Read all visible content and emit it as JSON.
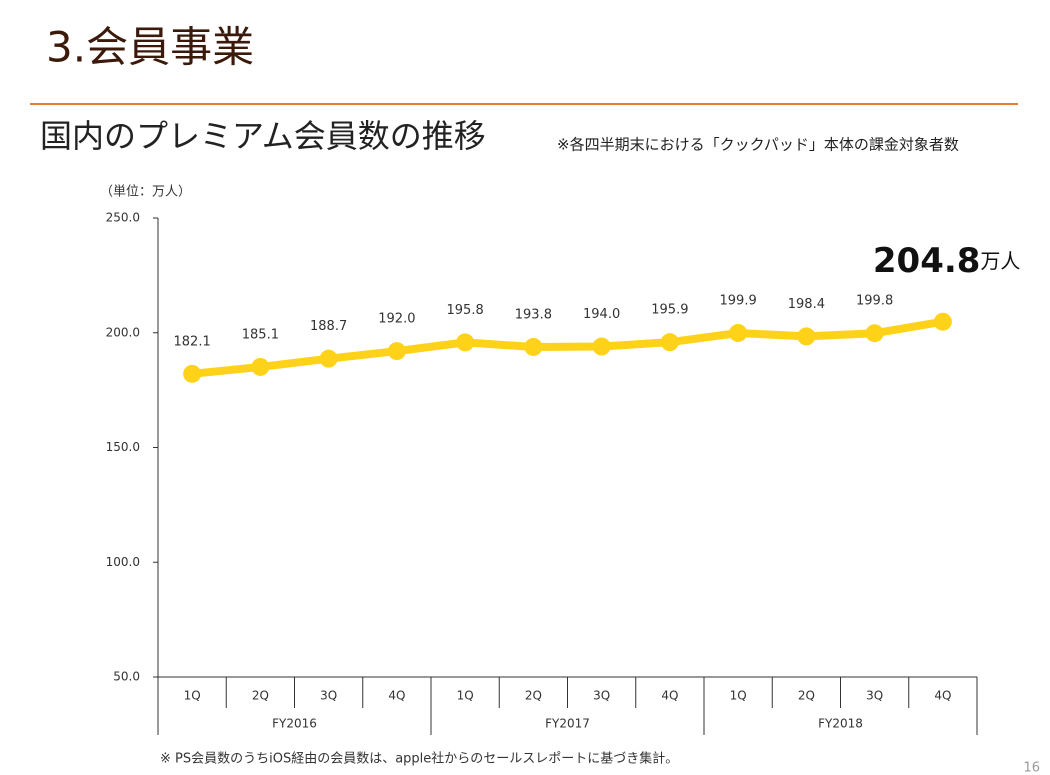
{
  "header": "3.会員事業",
  "chart_data": {
    "type": "line",
    "title": "国内のプレミアム会員数の推移",
    "subtitle": "※各四半期末における「クックパッド」本体の課金対象者数",
    "unit_label": "（単位：万人）",
    "categories": [
      "1Q",
      "2Q",
      "3Q",
      "4Q",
      "1Q",
      "2Q",
      "3Q",
      "4Q",
      "1Q",
      "2Q",
      "3Q",
      "4Q"
    ],
    "group_labels": [
      "FY2016",
      "FY2017",
      "FY2018"
    ],
    "series": [
      {
        "name": "プレミアム会員数",
        "color": "#ffd21a",
        "values": [
          182.1,
          185.1,
          188.7,
          192.0,
          195.8,
          193.8,
          194.0,
          195.9,
          199.9,
          198.4,
          199.8,
          204.8
        ],
        "value_labels": [
          "182.1",
          "185.1",
          "188.7",
          "192.0",
          "195.8",
          "193.8",
          "194.0",
          "195.9",
          "199.9",
          "198.4",
          "199.8",
          "204.8"
        ]
      }
    ],
    "last_value_unit": "万人",
    "ylim": [
      50,
      250
    ],
    "yticks": [
      {
        "value": 50,
        "label": "50.0"
      },
      {
        "value": 100,
        "label": "100.0"
      },
      {
        "value": 150,
        "label": "150.0"
      },
      {
        "value": 200,
        "label": "200.0"
      },
      {
        "value": 250,
        "label": "250.0"
      }
    ]
  },
  "footnote": "※ PS会員数のうちiOS経由の会員数は、apple社からのセールスレポートに基づき集計。",
  "page_number": "16"
}
